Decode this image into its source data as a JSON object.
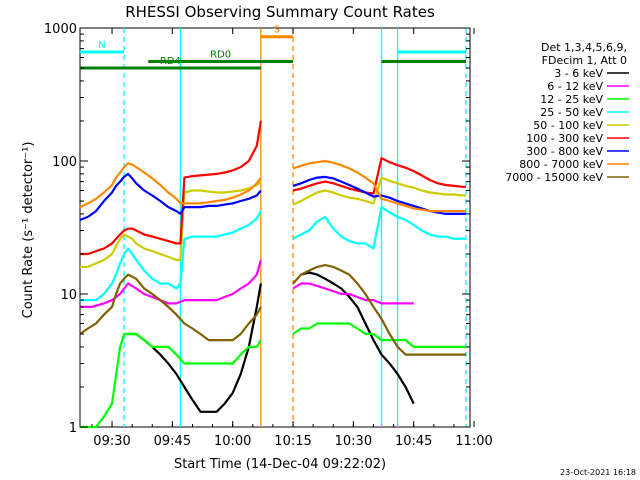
{
  "chart_data": {
    "type": "line",
    "title": "RHESSI Observing Summary Count Rates",
    "xlabel": "Start Time (14-Dec-04 09:22:02)",
    "ylabel": "Count Rate (s⁻¹ detector⁻¹)",
    "y_scale": "log",
    "ylim": [
      1,
      1000
    ],
    "xlim": [
      "09:22:02",
      "10:59:00"
    ],
    "x_ticks": [
      "09:30",
      "09:45",
      "10:00",
      "10:15",
      "10:30",
      "10:45",
      "11:00"
    ],
    "y_ticks": [
      {
        "value": 1,
        "label": "1"
      },
      {
        "value": 10,
        "label": "10"
      },
      {
        "value": 100,
        "label": "100"
      },
      {
        "value": 1000,
        "label": "1000"
      }
    ],
    "legend_position": "right",
    "legend_header": [
      "Det 1,3,4,5,6,9,",
      "FDecim 1, Att 0"
    ],
    "series": [
      {
        "name": "3 - 6 keV",
        "color": "#000000",
        "x": [
          "09:34",
          "09:36",
          "09:38",
          "09:40",
          "09:42",
          "09:44",
          "09:46",
          "09:48",
          "09:50",
          "09:52",
          "09:54",
          "09:56",
          "09:58",
          "10:00",
          "10:02",
          "10:04",
          "10:06",
          "10:07",
          null,
          "10:17",
          "10:19",
          "10:21",
          "10:23",
          "10:25",
          "10:27",
          "10:29",
          "10:31",
          "10:33",
          "10:35",
          "10:37",
          "10:39",
          "10:41",
          "10:43",
          "10:45"
        ],
        "values": [
          5,
          5,
          4.5,
          4,
          3.5,
          3,
          2.5,
          2,
          1.6,
          1.3,
          1.3,
          1.3,
          1.5,
          1.8,
          2.5,
          4,
          8,
          12,
          null,
          14,
          14.5,
          14,
          13,
          12,
          11,
          9.5,
          8,
          6,
          4.5,
          3.5,
          3,
          2.5,
          2,
          1.5
        ]
      },
      {
        "name": "6 - 12 keV",
        "color": "#ff00ff",
        "x": [
          "09:22",
          "09:25",
          "09:28",
          "09:30",
          "09:32",
          "09:33",
          "09:34",
          "09:36",
          "09:38",
          "09:40",
          "09:42",
          "09:44",
          "09:46",
          "09:48",
          "09:50",
          "09:52",
          "09:54",
          "09:56",
          "09:58",
          "10:00",
          "10:02",
          "10:04",
          "10:06",
          "10:07",
          null,
          "10:15",
          "10:17",
          "10:19",
          "10:21",
          "10:23",
          "10:25",
          "10:27",
          "10:29",
          "10:31",
          "10:33",
          "10:35",
          "10:37",
          "10:39",
          "10:41",
          "10:43",
          "10:45"
        ],
        "values": [
          8,
          8,
          8.5,
          9,
          10,
          11,
          12,
          11,
          10,
          9.5,
          9,
          8.5,
          8.5,
          9,
          9,
          9,
          9,
          9,
          9.5,
          10,
          11,
          12,
          14,
          18,
          null,
          11,
          12,
          12,
          11.5,
          11,
          10.5,
          10,
          10,
          9.5,
          9,
          9,
          8.5,
          8.5,
          8.5,
          8.5,
          8.5
        ]
      },
      {
        "name": "12 - 25 keV",
        "color": "#00ff00",
        "x": [
          "09:22",
          "09:24",
          "09:26",
          "09:28",
          "09:30",
          "09:32",
          "09:33",
          "09:34",
          "09:36",
          "09:38",
          "09:40",
          "09:42",
          "09:44",
          "09:46",
          "09:48",
          "09:50",
          "09:52",
          "09:54",
          "09:56",
          "09:58",
          "10:00",
          "10:02",
          "10:04",
          "10:06",
          "10:07",
          null,
          "10:15",
          "10:17",
          "10:19",
          "10:21",
          "10:23",
          "10:25",
          "10:27",
          "10:29",
          "10:31",
          "10:33",
          "10:35",
          "10:37",
          "10:39",
          "10:41",
          "10:43",
          "10:45",
          "10:47",
          "10:49",
          "10:51",
          "10:53",
          "10:55",
          "10:57",
          "10:58"
        ],
        "values": [
          1,
          1,
          1,
          1.2,
          1.5,
          4,
          5,
          5,
          5,
          4.5,
          4,
          4,
          4,
          3.5,
          3,
          3,
          3,
          3,
          3,
          3,
          3,
          3.5,
          4,
          4,
          4.5,
          null,
          5,
          5.5,
          5.5,
          6,
          6,
          6,
          6,
          6,
          5.5,
          5,
          5,
          4.5,
          4.5,
          4.5,
          4.5,
          4,
          4,
          4,
          4,
          4,
          4,
          4,
          4
        ]
      },
      {
        "name": "25 - 50 keV",
        "color": "#00ffff",
        "x": [
          "09:22",
          "09:24",
          "09:26",
          "09:28",
          "09:30",
          "09:31",
          "09:32",
          "09:33",
          "09:34",
          "09:35",
          "09:36",
          "09:38",
          "09:40",
          "09:42",
          "09:44",
          "09:46",
          "09:47",
          "09:48",
          "09:50",
          "09:52",
          "09:54",
          "09:56",
          "09:58",
          "10:00",
          "10:02",
          "10:04",
          "10:06",
          "10:07",
          null,
          "10:15",
          "10:17",
          "10:19",
          "10:21",
          "10:23",
          "10:25",
          "10:27",
          "10:29",
          "10:31",
          "10:33",
          "10:35",
          "10:37",
          "10:39",
          "10:41",
          "10:43",
          "10:45",
          "10:47",
          "10:49",
          "10:51",
          "10:53",
          "10:55",
          "10:57",
          "10:58"
        ],
        "values": [
          9,
          9,
          9,
          10,
          12,
          14,
          17,
          20,
          22,
          20,
          18,
          15,
          13,
          12,
          12,
          11,
          12,
          26,
          27,
          27,
          27,
          27,
          28,
          29,
          31,
          33,
          37,
          42,
          null,
          26,
          28,
          30,
          35,
          38,
          31,
          27,
          25,
          24,
          24,
          22,
          45,
          41,
          38,
          36,
          33,
          30,
          28,
          27,
          27,
          26,
          26,
          26
        ]
      },
      {
        "name": "50 - 100 keV",
        "color": "#cccc00",
        "x": [
          "09:22",
          "09:24",
          "09:26",
          "09:28",
          "09:30",
          "09:31",
          "09:32",
          "09:33",
          "09:34",
          "09:35",
          "09:36",
          "09:38",
          "09:40",
          "09:42",
          "09:44",
          "09:46",
          "09:47",
          "09:48",
          "09:50",
          "09:52",
          "09:54",
          "09:56",
          "09:58",
          "10:00",
          "10:02",
          "10:04",
          "10:06",
          "10:07",
          null,
          "10:15",
          "10:17",
          "10:19",
          "10:21",
          "10:23",
          "10:25",
          "10:27",
          "10:29",
          "10:31",
          "10:33",
          "10:35",
          "10:37",
          "10:39",
          "10:41",
          "10:43",
          "10:45",
          "10:47",
          "10:49",
          "10:51",
          "10:53",
          "10:55",
          "10:57",
          "10:58"
        ],
        "values": [
          16,
          16,
          17,
          18,
          20,
          23,
          26,
          28,
          27,
          26,
          24,
          22,
          21,
          20,
          19,
          18,
          18,
          58,
          60,
          60,
          59,
          58,
          58,
          59,
          60,
          62,
          66,
          70,
          null,
          47,
          50,
          54,
          58,
          60,
          58,
          55,
          53,
          52,
          50,
          48,
          75,
          71,
          68,
          65,
          63,
          60,
          58,
          57,
          56,
          56,
          55,
          55
        ]
      },
      {
        "name": "100 - 300 keV",
        "color": "#ff0000",
        "x": [
          "09:22",
          "09:24",
          "09:26",
          "09:28",
          "09:30",
          "09:31",
          "09:32",
          "09:33",
          "09:34",
          "09:35",
          "09:36",
          "09:38",
          "09:40",
          "09:42",
          "09:44",
          "09:46",
          "09:47",
          "09:48",
          "09:50",
          "09:52",
          "09:54",
          "09:56",
          "09:58",
          "10:00",
          "10:02",
          "10:04",
          "10:06",
          "10:07",
          null,
          "10:15",
          "10:17",
          "10:19",
          "10:21",
          "10:23",
          "10:25",
          "10:27",
          "10:29",
          "10:31",
          "10:33",
          "10:35",
          "10:37",
          "10:39",
          "10:41",
          "10:43",
          "10:45",
          "10:47",
          "10:49",
          "10:51",
          "10:53",
          "10:55",
          "10:57",
          "10:58"
        ],
        "values": [
          20,
          20,
          21,
          22,
          24,
          26,
          28,
          30,
          31,
          31,
          30,
          28,
          27,
          26,
          25,
          24,
          24,
          75,
          77,
          78,
          79,
          80,
          82,
          85,
          90,
          100,
          130,
          200,
          null,
          60,
          62,
          65,
          68,
          70,
          68,
          65,
          62,
          60,
          58,
          57,
          105,
          98,
          93,
          89,
          84,
          78,
          72,
          68,
          66,
          65,
          64,
          64
        ]
      },
      {
        "name": "300 - 800 keV",
        "color": "#0000ff",
        "x": [
          "09:22",
          "09:24",
          "09:26",
          "09:28",
          "09:30",
          "09:31",
          "09:32",
          "09:33",
          "09:34",
          "09:35",
          "09:36",
          "09:38",
          "09:40",
          "09:42",
          "09:44",
          "09:46",
          "09:47",
          "09:48",
          "09:50",
          "09:52",
          "09:54",
          "09:56",
          "09:58",
          "10:00",
          "10:02",
          "10:04",
          "10:06",
          "10:07",
          null,
          "10:15",
          "10:17",
          "10:19",
          "10:21",
          "10:23",
          "10:25",
          "10:27",
          "10:29",
          "10:31",
          "10:33",
          "10:35",
          "10:37",
          "10:39",
          "10:41",
          "10:43",
          "10:45",
          "10:47",
          "10:49",
          "10:51",
          "10:53",
          "10:55",
          "10:57",
          "10:58"
        ],
        "values": [
          36,
          38,
          42,
          50,
          58,
          65,
          70,
          76,
          80,
          74,
          68,
          60,
          55,
          50,
          45,
          42,
          40,
          45,
          45,
          45,
          46,
          46,
          47,
          48,
          50,
          52,
          55,
          60,
          null,
          65,
          68,
          72,
          75,
          76,
          74,
          70,
          66,
          62,
          58,
          54,
          55,
          53,
          50,
          48,
          46,
          44,
          42,
          41,
          40,
          40,
          40,
          40
        ]
      },
      {
        "name": "800 - 7000 keV",
        "color": "#ff8800",
        "x": [
          "09:22",
          "09:24",
          "09:26",
          "09:28",
          "09:30",
          "09:31",
          "09:32",
          "09:33",
          "09:34",
          "09:35",
          "09:36",
          "09:38",
          "09:40",
          "09:42",
          "09:44",
          "09:46",
          "09:47",
          "09:48",
          "09:50",
          "09:52",
          "09:54",
          "09:56",
          "09:58",
          "10:00",
          "10:02",
          "10:04",
          "10:06",
          "10:07",
          null,
          "10:15",
          "10:17",
          "10:19",
          "10:21",
          "10:23",
          "10:25",
          "10:27",
          "10:29",
          "10:31",
          "10:33",
          "10:35",
          "10:37",
          "10:39",
          "10:41",
          "10:43",
          "10:45",
          "10:47",
          "10:49",
          "10:51",
          "10:53",
          "10:55",
          "10:57",
          "10:58"
        ],
        "values": [
          45,
          48,
          52,
          58,
          66,
          75,
          82,
          90,
          96,
          94,
          90,
          82,
          74,
          66,
          58,
          52,
          48,
          48,
          48,
          48,
          49,
          50,
          51,
          53,
          56,
          60,
          68,
          75,
          null,
          88,
          92,
          96,
          98,
          100,
          97,
          93,
          88,
          82,
          75,
          68,
          52,
          50,
          48,
          46,
          44,
          43,
          42,
          42,
          42,
          42,
          42,
          42
        ]
      },
      {
        "name": "7000 - 15000 keV",
        "color": "#806000",
        "x": [
          "09:22",
          "09:24",
          "09:26",
          "09:28",
          "09:30",
          "09:31",
          "09:32",
          "09:33",
          "09:34",
          "09:35",
          "09:36",
          "09:38",
          "09:40",
          "09:42",
          "09:44",
          "09:46",
          "09:48",
          "09:50",
          "09:52",
          "09:54",
          "09:56",
          "09:58",
          "10:00",
          "10:02",
          "10:04",
          "10:06",
          "10:07",
          null,
          "10:15",
          "10:17",
          "10:19",
          "10:21",
          "10:23",
          "10:25",
          "10:27",
          "10:29",
          "10:31",
          "10:33",
          "10:35",
          "10:37",
          "10:39",
          "10:41",
          "10:43",
          "10:45",
          "10:47",
          "10:49",
          "10:51",
          "10:53",
          "10:55",
          "10:57",
          "10:58"
        ],
        "values": [
          5,
          5.5,
          6,
          7,
          8,
          10,
          12,
          13,
          14,
          13.5,
          13,
          11,
          10,
          9,
          8,
          7,
          6,
          5.5,
          5,
          4.5,
          4.5,
          4.5,
          4.5,
          5,
          6,
          7,
          8,
          null,
          12,
          14,
          15,
          16,
          16.5,
          16,
          15,
          14,
          12,
          10,
          8,
          6.5,
          5,
          4,
          3.5,
          3.5,
          3.5,
          3.5,
          3.5,
          3.5,
          3.5,
          3.5,
          3.5
        ]
      }
    ],
    "state_bars": [
      {
        "label": "N",
        "color": "#00ffff",
        "value": 660,
        "intervals": [
          [
            "09:22",
            "09:33"
          ],
          [
            "10:41",
            "10:58"
          ]
        ]
      },
      {
        "label": "RD0",
        "color": "#008000",
        "value": 560,
        "intervals": [
          [
            "09:39",
            "10:15"
          ],
          [
            "10:37",
            "10:58"
          ]
        ]
      },
      {
        "label": "RD4",
        "color": "#008000",
        "value": 500,
        "intervals": [
          [
            "09:22",
            "10:07"
          ]
        ]
      },
      {
        "label": "S",
        "color": "#ff8800",
        "value": 860,
        "intervals": [
          [
            "10:07",
            "10:15"
          ]
        ]
      }
    ],
    "vertical_markers": [
      {
        "x": "09:33",
        "color": "#00ffff",
        "style": "dashed"
      },
      {
        "x": "09:47",
        "color": "#00ffff",
        "style": "solid"
      },
      {
        "x": "10:07",
        "color": "#ff8800",
        "style": "solid"
      },
      {
        "x": "10:15",
        "color": "#ff8800",
        "style": "dashed"
      },
      {
        "x": "10:37",
        "color": "#00ffff",
        "style": "solid"
      },
      {
        "x": "10:41",
        "color": "#00ffff",
        "style": "solid"
      },
      {
        "x": "10:58",
        "color": "#00ffff",
        "style": "dashed"
      }
    ],
    "footer_timestamp": "23-Oct-2021 16:18"
  }
}
